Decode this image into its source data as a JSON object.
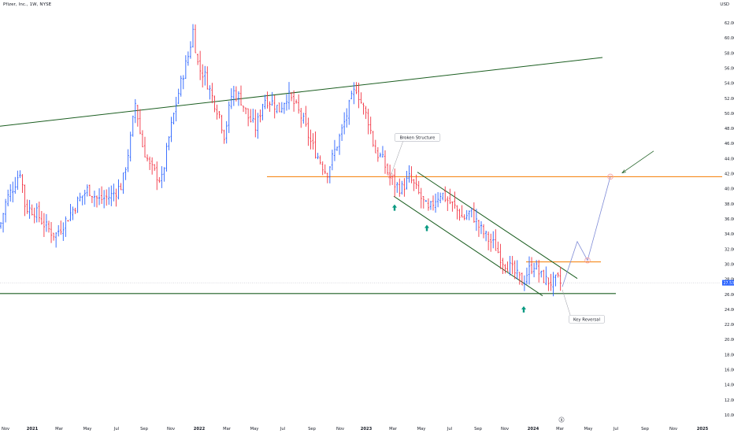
{
  "header": {
    "symbol_title": "Pfizer, Inc., 1W, NYSE",
    "currency": "USD"
  },
  "colors": {
    "up": "#2962ff",
    "down": "#f23645",
    "trendline": "#1b5e20",
    "level": "#f57c00",
    "projection": "#7e8ad6",
    "arrow": "#089981",
    "last_price_bg": "#2962ff"
  },
  "last_price_label": "27.53",
  "marker_badge": "9",
  "chart_data": {
    "type": "candlestick",
    "y_axis_ticks": [
      "62.00",
      "60.00",
      "58.00",
      "56.00",
      "54.00",
      "52.00",
      "50.00",
      "48.00",
      "46.00",
      "44.00",
      "42.00",
      "40.00",
      "38.00",
      "36.00",
      "34.00",
      "32.00",
      "30.00",
      "28.00",
      "26.00",
      "24.00",
      "22.00",
      "20.00",
      "18.00",
      "16.00",
      "14.00",
      "12.00",
      "10.00"
    ],
    "ylim": [
      9.2,
      63.5
    ],
    "x_axis_ticks": [
      "Nov",
      "2021",
      "Mar",
      "May",
      "Jul",
      "Sep",
      "Nov",
      "2022",
      "Mar",
      "May",
      "Jul",
      "Sep",
      "Nov",
      "2023",
      "Mar",
      "May",
      "Jul",
      "Sep",
      "Nov",
      "2024",
      "Mar",
      "May",
      "Jul",
      "Sep",
      "Nov",
      "2025"
    ],
    "x_axis_bold": [
      "2021",
      "2022",
      "2023",
      "2024",
      "2025"
    ],
    "price_path": [
      [
        0,
        35.0
      ],
      [
        8,
        38.5
      ],
      [
        18,
        40.5
      ],
      [
        26,
        42.5
      ],
      [
        32,
        37.5
      ],
      [
        45,
        37.0
      ],
      [
        58,
        35.0
      ],
      [
        70,
        33.8
      ],
      [
        85,
        36.0
      ],
      [
        100,
        38.5
      ],
      [
        112,
        40.0
      ],
      [
        125,
        38.5
      ],
      [
        140,
        39.0
      ],
      [
        155,
        40.5
      ],
      [
        165,
        46.0
      ],
      [
        172,
        51.5
      ],
      [
        180,
        46.0
      ],
      [
        190,
        43.0
      ],
      [
        205,
        41.0
      ],
      [
        215,
        47.0
      ],
      [
        225,
        52.0
      ],
      [
        232,
        55.0
      ],
      [
        240,
        58.0
      ],
      [
        245,
        61.0
      ],
      [
        252,
        56.0
      ],
      [
        260,
        55.0
      ],
      [
        270,
        52.0
      ],
      [
        278,
        50.0
      ],
      [
        285,
        47.0
      ],
      [
        295,
        53.0
      ],
      [
        305,
        52.0
      ],
      [
        315,
        49.5
      ],
      [
        325,
        48.0
      ],
      [
        335,
        52.0
      ],
      [
        345,
        51.5
      ],
      [
        355,
        50.5
      ],
      [
        365,
        52.5
      ],
      [
        375,
        51.0
      ],
      [
        385,
        49.0
      ],
      [
        395,
        46.0
      ],
      [
        405,
        44.0
      ],
      [
        415,
        42.0
      ],
      [
        425,
        45.0
      ],
      [
        435,
        48.0
      ],
      [
        445,
        51.5
      ],
      [
        452,
        53.5
      ],
      [
        460,
        51.0
      ],
      [
        468,
        49.0
      ],
      [
        476,
        45.0
      ],
      [
        485,
        44.0
      ],
      [
        495,
        41.5
      ],
      [
        502,
        40.5
      ],
      [
        510,
        40.0
      ],
      [
        520,
        41.5
      ],
      [
        528,
        40.0
      ],
      [
        536,
        38.5
      ],
      [
        544,
        37.0
      ],
      [
        552,
        38.5
      ],
      [
        560,
        39.5
      ],
      [
        568,
        38.5
      ],
      [
        578,
        37.5
      ],
      [
        588,
        36.0
      ],
      [
        598,
        37.0
      ],
      [
        608,
        35.0
      ],
      [
        618,
        33.5
      ],
      [
        628,
        32.5
      ],
      [
        638,
        30.5
      ],
      [
        648,
        29.5
      ],
      [
        656,
        28.5
      ],
      [
        664,
        27.5
      ],
      [
        670,
        29.0
      ],
      [
        678,
        30.0
      ],
      [
        686,
        28.5
      ],
      [
        694,
        27.8
      ],
      [
        702,
        27.5
      ],
      [
        708,
        28.0
      ],
      [
        714,
        27.1
      ]
    ],
    "horizontal_levels": [
      {
        "price": 41.6,
        "color": "level"
      },
      {
        "price": 30.3,
        "color": "level"
      },
      {
        "price": 26.1,
        "color": "trendline"
      }
    ],
    "trendlines": [
      {
        "from": [
          0,
          48.3
        ],
        "to": [
          765,
          57.4
        ]
      },
      {
        "from": [
          530,
          42.2
        ],
        "to": [
          733,
          28.1
        ]
      },
      {
        "from": [
          500,
          39.0
        ],
        "to": [
          689,
          25.8
        ]
      }
    ],
    "projection_path": [
      [
        714,
        27.0
      ],
      [
        733,
        33.0
      ],
      [
        746,
        30.5
      ],
      [
        775,
        41.6
      ]
    ],
    "projection_arrow": {
      "from": [
        830,
        45.0
      ],
      "to": [
        790,
        42.1
      ]
    },
    "annotations": [
      {
        "text": "Broken Structure",
        "at": [
          496,
          41.7
        ],
        "box": [
          530,
          46.8
        ]
      },
      {
        "text": "Key Reversal",
        "at": [
          714,
          26.6
        ],
        "box": [
          745,
          22.7
        ]
      }
    ],
    "up_arrows": [
      [
        501,
        37.5
      ],
      [
        542,
        34.8
      ],
      [
        665,
        24.0
      ]
    ],
    "circled_points": [
      [
        496,
        41.7
      ],
      [
        746,
        30.5
      ],
      [
        775,
        41.6
      ]
    ],
    "last_price": 27.53
  }
}
